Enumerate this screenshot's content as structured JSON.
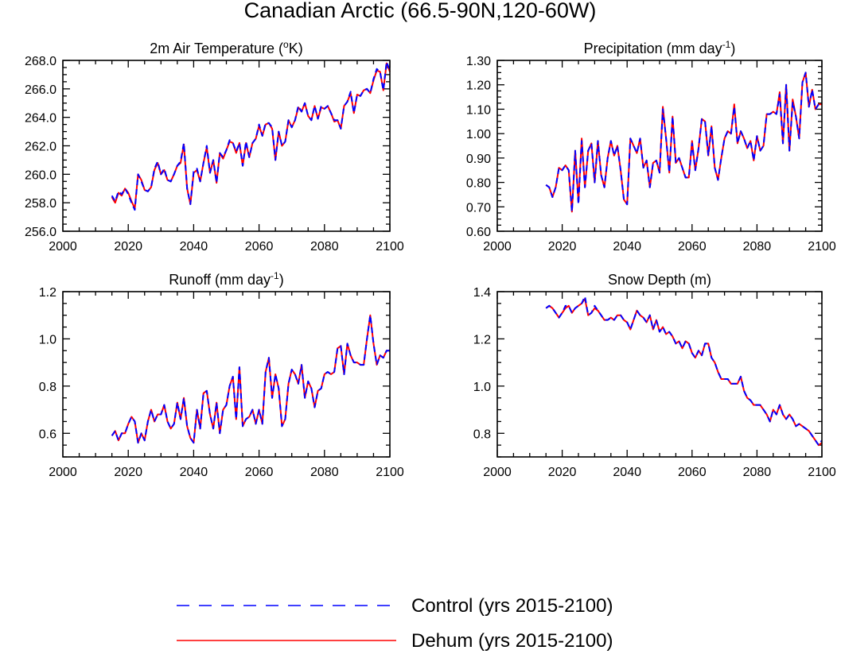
{
  "figure": {
    "title": "Canadian Arctic (66.5-90N,120-60W)"
  },
  "legend": {
    "control_label": "Control (yrs 2015-2100)",
    "dehum_label": "Dehum (yrs 2015-2100)",
    "control_color": "#0000ff",
    "dehum_color": "#ff0000"
  },
  "chart_data": [
    {
      "type": "line",
      "title": "2m Air Temperature (",
      "title_sup": "o",
      "title_suffix": "K)",
      "xlabel": "",
      "ylabel": "",
      "xlim": [
        2000,
        2100
      ],
      "ylim": [
        256,
        268
      ],
      "xticks": [
        2000,
        2020,
        2040,
        2060,
        2080,
        2100
      ],
      "xtick_labels": [
        "2000",
        "2020",
        "2040",
        "2060",
        "2080",
        "2100"
      ],
      "yticks": [
        256,
        258,
        260,
        262,
        264,
        266,
        268
      ],
      "ytick_labels": [
        "256.0",
        "258.0",
        "260.0",
        "262.0",
        "264.0",
        "266.0",
        "268.0"
      ],
      "x_start": 2015,
      "series": [
        {
          "name": "Control (yrs 2015-2100)",
          "style": "dashed",
          "values": [
            258.5,
            258.1,
            258.8,
            258.6,
            259.0,
            258.6,
            258.0,
            257.5,
            260.0,
            259.5,
            258.9,
            258.8,
            259.1,
            260.4,
            260.9,
            260.0,
            260.4,
            259.6,
            259.5,
            260.0,
            260.6,
            260.9,
            262.2,
            259.0,
            257.9,
            260.2,
            260.4,
            259.5,
            260.8,
            262.0,
            260.1,
            261.0,
            259.4,
            261.5,
            261.2,
            261.7,
            262.4,
            262.2,
            261.6,
            262.2,
            260.6,
            262.3,
            261.2,
            262.2,
            262.5,
            263.5,
            262.7,
            263.6,
            263.6,
            263.3,
            261.0,
            263.0,
            262.0,
            262.3,
            263.8,
            263.3,
            263.8,
            264.8,
            264.4,
            265.0,
            264.1,
            263.8,
            264.8,
            263.9,
            264.8,
            264.6,
            264.8,
            264.3,
            263.8,
            263.8,
            263.2,
            264.8,
            265.1,
            265.8,
            264.3,
            265.6,
            265.5,
            265.9,
            266.0,
            265.7,
            266.7,
            267.4,
            267.2,
            265.9,
            267.9,
            267.3
          ]
        },
        {
          "name": "Dehum (yrs 2015-2100)",
          "style": "solid",
          "values": [
            258.4,
            258.0,
            258.7,
            258.5,
            259.0,
            258.7,
            258.1,
            257.6,
            260.0,
            259.6,
            258.9,
            258.8,
            259.1,
            260.3,
            260.8,
            260.0,
            260.3,
            259.6,
            259.5,
            260.0,
            260.6,
            260.8,
            262.1,
            259.0,
            257.9,
            260.1,
            260.3,
            259.5,
            260.8,
            261.9,
            260.1,
            261.0,
            259.4,
            261.5,
            261.1,
            261.7,
            262.3,
            262.2,
            261.5,
            262.2,
            260.6,
            262.2,
            261.2,
            262.2,
            262.5,
            263.4,
            262.7,
            263.5,
            263.6,
            263.2,
            261.0,
            263.0,
            262.0,
            262.3,
            263.8,
            263.3,
            263.8,
            264.7,
            264.4,
            265.0,
            264.1,
            263.8,
            264.8,
            263.9,
            264.7,
            264.6,
            264.8,
            264.3,
            263.7,
            263.8,
            263.2,
            264.8,
            265.1,
            265.7,
            264.3,
            265.6,
            265.5,
            265.9,
            266.0,
            265.7,
            266.6,
            267.3,
            267.2,
            265.9,
            267.8,
            267.2
          ]
        }
      ]
    },
    {
      "type": "line",
      "title": "Precipitation (mm day",
      "title_sup": "-1",
      "title_suffix": ")",
      "xlabel": "",
      "ylabel": "",
      "xlim": [
        2000,
        2100
      ],
      "ylim": [
        0.6,
        1.3
      ],
      "xticks": [
        2000,
        2020,
        2040,
        2060,
        2080,
        2100
      ],
      "xtick_labels": [
        "2000",
        "2020",
        "2040",
        "2060",
        "2080",
        "2100"
      ],
      "yticks": [
        0.6,
        0.7,
        0.8,
        0.9,
        1.0,
        1.1,
        1.2,
        1.3
      ],
      "ytick_labels": [
        "0.60",
        "0.70",
        "0.80",
        "0.90",
        "1.00",
        "1.10",
        "1.20",
        "1.30"
      ],
      "x_start": 2015,
      "series": [
        {
          "name": "Control (yrs 2015-2100)",
          "style": "dashed",
          "values": [
            0.79,
            0.78,
            0.74,
            0.78,
            0.86,
            0.85,
            0.87,
            0.85,
            0.68,
            0.93,
            0.71,
            0.97,
            0.78,
            0.93,
            0.96,
            0.8,
            0.97,
            0.83,
            0.78,
            0.9,
            0.97,
            0.91,
            0.95,
            0.85,
            0.73,
            0.71,
            0.98,
            0.95,
            0.92,
            0.98,
            0.86,
            0.89,
            0.78,
            0.88,
            0.89,
            0.84,
            1.1,
            0.98,
            0.84,
            1.07,
            0.88,
            0.9,
            0.86,
            0.82,
            0.82,
            0.96,
            0.85,
            0.94,
            1.06,
            1.05,
            0.91,
            1.03,
            0.86,
            0.81,
            0.9,
            0.98,
            1.01,
            1.0,
            1.11,
            0.96,
            1.01,
            0.98,
            0.94,
            0.97,
            0.89,
            0.99,
            0.93,
            0.95,
            1.08,
            1.08,
            1.09,
            1.08,
            1.16,
            0.96,
            1.2,
            0.93,
            1.13,
            1.07,
            0.98,
            1.21,
            1.25,
            1.11,
            1.18,
            1.1,
            1.12,
            1.12
          ]
        },
        {
          "name": "Dehum (yrs 2015-2100)",
          "style": "solid",
          "values": [
            0.79,
            0.78,
            0.74,
            0.78,
            0.86,
            0.85,
            0.87,
            0.85,
            0.68,
            0.93,
            0.72,
            0.98,
            0.78,
            0.93,
            0.96,
            0.8,
            0.97,
            0.83,
            0.78,
            0.9,
            0.97,
            0.91,
            0.95,
            0.85,
            0.73,
            0.71,
            0.98,
            0.95,
            0.92,
            0.98,
            0.86,
            0.89,
            0.78,
            0.88,
            0.89,
            0.84,
            1.11,
            0.98,
            0.84,
            1.07,
            0.88,
            0.9,
            0.86,
            0.82,
            0.82,
            0.97,
            0.85,
            0.94,
            1.06,
            1.05,
            0.91,
            1.03,
            0.86,
            0.81,
            0.9,
            0.98,
            1.01,
            1.0,
            1.12,
            0.96,
            1.01,
            0.98,
            0.94,
            0.97,
            0.89,
            0.99,
            0.93,
            0.95,
            1.08,
            1.08,
            1.09,
            1.08,
            1.17,
            0.96,
            1.2,
            0.93,
            1.14,
            1.07,
            0.98,
            1.21,
            1.25,
            1.11,
            1.18,
            1.1,
            1.12,
            1.12
          ]
        }
      ]
    },
    {
      "type": "line",
      "title": "Runoff (mm day",
      "title_sup": "-1",
      "title_suffix": ")",
      "xlabel": "",
      "ylabel": "",
      "xlim": [
        2000,
        2100
      ],
      "ylim": [
        0.5,
        1.2
      ],
      "xticks": [
        2000,
        2020,
        2040,
        2060,
        2080,
        2100
      ],
      "xtick_labels": [
        "2000",
        "2020",
        "2040",
        "2060",
        "2080",
        "2100"
      ],
      "yticks": [
        0.6,
        0.8,
        1.0,
        1.2
      ],
      "ytick_labels": [
        "0.6",
        "0.8",
        "1.0",
        "1.2"
      ],
      "x_start": 2015,
      "series": [
        {
          "name": "Control (yrs 2015-2100)",
          "style": "dashed",
          "values": [
            0.59,
            0.61,
            0.57,
            0.6,
            0.6,
            0.64,
            0.67,
            0.65,
            0.56,
            0.6,
            0.57,
            0.65,
            0.7,
            0.65,
            0.68,
            0.68,
            0.72,
            0.65,
            0.62,
            0.64,
            0.73,
            0.66,
            0.75,
            0.63,
            0.58,
            0.56,
            0.7,
            0.62,
            0.77,
            0.78,
            0.68,
            0.62,
            0.73,
            0.6,
            0.7,
            0.72,
            0.8,
            0.84,
            0.66,
            0.88,
            0.63,
            0.66,
            0.67,
            0.7,
            0.64,
            0.7,
            0.64,
            0.86,
            0.92,
            0.75,
            0.85,
            0.79,
            0.63,
            0.66,
            0.81,
            0.87,
            0.85,
            0.81,
            0.89,
            0.75,
            0.82,
            0.79,
            0.71,
            0.78,
            0.79,
            0.85,
            0.86,
            0.85,
            0.86,
            0.96,
            0.97,
            0.85,
            0.98,
            0.93,
            0.9,
            0.9,
            0.89,
            0.89,
            1.0,
            1.1,
            0.98,
            0.89,
            0.93,
            0.92,
            0.95,
            0.95
          ]
        },
        {
          "name": "Dehum (yrs 2015-2100)",
          "style": "solid",
          "values": [
            0.59,
            0.61,
            0.57,
            0.6,
            0.6,
            0.64,
            0.67,
            0.65,
            0.56,
            0.6,
            0.57,
            0.65,
            0.7,
            0.65,
            0.68,
            0.68,
            0.72,
            0.65,
            0.62,
            0.64,
            0.73,
            0.66,
            0.75,
            0.63,
            0.58,
            0.56,
            0.7,
            0.62,
            0.77,
            0.78,
            0.68,
            0.62,
            0.73,
            0.6,
            0.7,
            0.72,
            0.8,
            0.84,
            0.66,
            0.88,
            0.63,
            0.66,
            0.67,
            0.7,
            0.64,
            0.7,
            0.64,
            0.86,
            0.92,
            0.75,
            0.85,
            0.79,
            0.63,
            0.66,
            0.81,
            0.87,
            0.85,
            0.81,
            0.89,
            0.75,
            0.82,
            0.79,
            0.71,
            0.78,
            0.79,
            0.85,
            0.86,
            0.85,
            0.86,
            0.96,
            0.97,
            0.85,
            0.98,
            0.93,
            0.9,
            0.9,
            0.89,
            0.89,
            1.0,
            1.1,
            0.98,
            0.89,
            0.93,
            0.92,
            0.95,
            0.95
          ]
        }
      ]
    },
    {
      "type": "line",
      "title": "Snow Depth (m)",
      "title_sup": "",
      "title_suffix": "",
      "xlabel": "",
      "ylabel": "",
      "xlim": [
        2000,
        2100
      ],
      "ylim": [
        0.7,
        1.4
      ],
      "xticks": [
        2000,
        2020,
        2040,
        2060,
        2080,
        2100
      ],
      "xtick_labels": [
        "2000",
        "2020",
        "2040",
        "2060",
        "2080",
        "2100"
      ],
      "yticks": [
        0.8,
        1.0,
        1.2,
        1.4
      ],
      "ytick_labels": [
        "0.8",
        "1.0",
        "1.2",
        "1.4"
      ],
      "x_start": 2015,
      "series": [
        {
          "name": "Control (yrs 2015-2100)",
          "style": "dashed",
          "values": [
            1.33,
            1.34,
            1.33,
            1.31,
            1.29,
            1.31,
            1.34,
            1.34,
            1.31,
            1.33,
            1.34,
            1.35,
            1.38,
            1.3,
            1.31,
            1.34,
            1.32,
            1.3,
            1.28,
            1.28,
            1.29,
            1.28,
            1.3,
            1.3,
            1.28,
            1.27,
            1.24,
            1.28,
            1.32,
            1.3,
            1.29,
            1.27,
            1.3,
            1.24,
            1.28,
            1.23,
            1.25,
            1.22,
            1.23,
            1.21,
            1.18,
            1.19,
            1.16,
            1.19,
            1.18,
            1.14,
            1.12,
            1.15,
            1.13,
            1.18,
            1.18,
            1.12,
            1.1,
            1.06,
            1.03,
            1.03,
            1.03,
            1.01,
            1.01,
            1.01,
            1.04,
            0.98,
            0.95,
            0.94,
            0.92,
            0.92,
            0.92,
            0.9,
            0.88,
            0.85,
            0.9,
            0.88,
            0.92,
            0.88,
            0.86,
            0.88,
            0.86,
            0.83,
            0.84,
            0.83,
            0.82,
            0.81,
            0.79,
            0.77,
            0.75,
            0.77
          ]
        },
        {
          "name": "Dehum (yrs 2015-2100)",
          "style": "solid",
          "values": [
            1.33,
            1.34,
            1.33,
            1.31,
            1.29,
            1.31,
            1.33,
            1.34,
            1.31,
            1.33,
            1.34,
            1.35,
            1.37,
            1.3,
            1.31,
            1.33,
            1.32,
            1.3,
            1.28,
            1.28,
            1.29,
            1.28,
            1.3,
            1.3,
            1.28,
            1.27,
            1.24,
            1.28,
            1.32,
            1.3,
            1.29,
            1.27,
            1.3,
            1.24,
            1.28,
            1.23,
            1.25,
            1.22,
            1.23,
            1.21,
            1.18,
            1.19,
            1.16,
            1.19,
            1.18,
            1.14,
            1.12,
            1.15,
            1.13,
            1.18,
            1.18,
            1.12,
            1.1,
            1.06,
            1.03,
            1.03,
            1.03,
            1.01,
            1.01,
            1.01,
            1.04,
            0.98,
            0.95,
            0.94,
            0.92,
            0.92,
            0.92,
            0.9,
            0.88,
            0.85,
            0.9,
            0.88,
            0.92,
            0.88,
            0.86,
            0.88,
            0.86,
            0.83,
            0.84,
            0.83,
            0.82,
            0.81,
            0.79,
            0.77,
            0.75,
            0.76
          ]
        }
      ]
    }
  ]
}
